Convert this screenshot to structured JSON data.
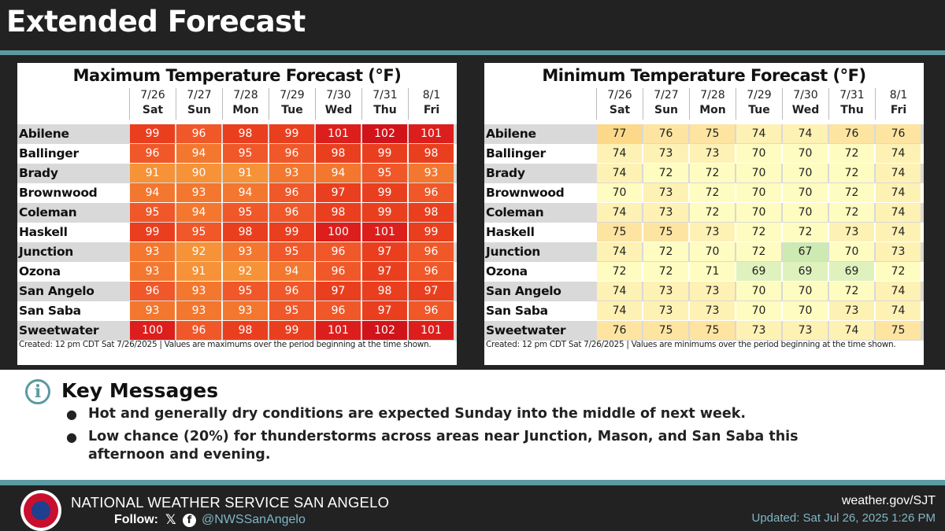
{
  "header": {
    "title": "Extended Forecast"
  },
  "max_table": {
    "title": "Maximum Temperature Forecast (°F)",
    "footnote": "Created: 12 pm CDT Sat 7/26/2025  |  Values are maximums over the period beginning at the time shown."
  },
  "min_table": {
    "title": "Minimum Temperature Forecast (°F)",
    "footnote": "Created: 12 pm CDT Sat 7/26/2025  |  Values are minimums over the period beginning at the time shown."
  },
  "days": [
    {
      "date": "7/26",
      "day": "Sat"
    },
    {
      "date": "7/27",
      "day": "Sun"
    },
    {
      "date": "7/28",
      "day": "Mon"
    },
    {
      "date": "7/29",
      "day": "Tue"
    },
    {
      "date": "7/30",
      "day": "Wed"
    },
    {
      "date": "7/31",
      "day": "Thu"
    },
    {
      "date": "8/1",
      "day": "Fri"
    }
  ],
  "cities": [
    "Abilene",
    "Ballinger",
    "Brady",
    "Brownwood",
    "Coleman",
    "Haskell",
    "Junction",
    "Ozona",
    "San Angelo",
    "San Saba",
    "Sweetwater"
  ],
  "max_values": [
    [
      99,
      96,
      98,
      99,
      101,
      102,
      101
    ],
    [
      96,
      94,
      95,
      96,
      98,
      99,
      98
    ],
    [
      91,
      90,
      91,
      93,
      94,
      95,
      93
    ],
    [
      94,
      93,
      94,
      96,
      97,
      99,
      96
    ],
    [
      95,
      94,
      95,
      96,
      98,
      99,
      98
    ],
    [
      99,
      95,
      98,
      99,
      100,
      101,
      99
    ],
    [
      93,
      92,
      93,
      95,
      96,
      97,
      96
    ],
    [
      93,
      91,
      92,
      94,
      96,
      97,
      96
    ],
    [
      96,
      93,
      95,
      96,
      97,
      98,
      97
    ],
    [
      93,
      93,
      93,
      95,
      96,
      97,
      96
    ],
    [
      100,
      96,
      98,
      99,
      101,
      102,
      101
    ]
  ],
  "min_values": [
    [
      77,
      76,
      75,
      74,
      74,
      76,
      76
    ],
    [
      74,
      73,
      73,
      70,
      70,
      72,
      74
    ],
    [
      74,
      72,
      72,
      70,
      70,
      72,
      74
    ],
    [
      70,
      73,
      72,
      70,
      70,
      72,
      74
    ],
    [
      74,
      73,
      72,
      70,
      70,
      72,
      74
    ],
    [
      75,
      75,
      73,
      72,
      72,
      73,
      74
    ],
    [
      74,
      72,
      70,
      72,
      67,
      70,
      73
    ],
    [
      72,
      72,
      71,
      69,
      69,
      69,
      72
    ],
    [
      74,
      73,
      73,
      70,
      70,
      72,
      74
    ],
    [
      74,
      73,
      73,
      70,
      70,
      73,
      74
    ],
    [
      76,
      75,
      75,
      73,
      73,
      74,
      75
    ]
  ],
  "key_messages": {
    "title": "Key Messages",
    "items": [
      "Hot and generally dry conditions are expected Sunday into the middle of next week.",
      "Low chance (20%) for thunderstorms across areas near Junction, Mason, and San Saba this afternoon and evening."
    ]
  },
  "footer": {
    "org": "NATIONAL WEATHER SERVICE SAN ANGELO",
    "follow_label": "Follow:",
    "handle": "@NWSSanAngelo",
    "website": "weather.gov/SJT",
    "updated": "Updated: Sat Jul 26, 2025 1:26 PM"
  },
  "colors": {
    "accent": "#5b9aa0",
    "header_bg": "#222222",
    "row_shade": "#d9d9d9"
  },
  "icons": {
    "info": "info-icon",
    "x": "x-icon",
    "facebook": "facebook-icon",
    "logo": "nws-logo"
  }
}
